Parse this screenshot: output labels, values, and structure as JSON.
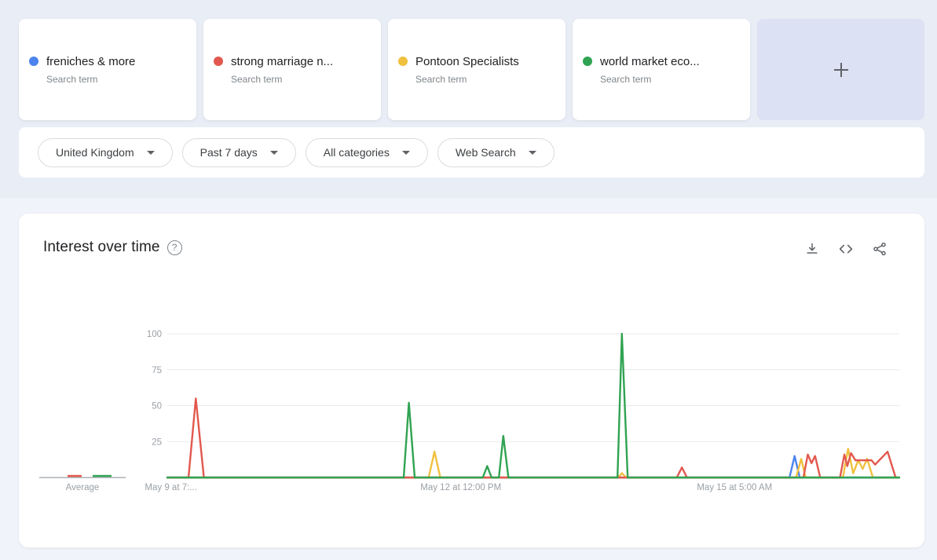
{
  "terms": [
    {
      "label": "freniches & more",
      "sublabel": "Search term",
      "color": "#4c83ee"
    },
    {
      "label": "strong marriage n...",
      "sublabel": "Search term",
      "color": "#e2584e"
    },
    {
      "label": "Pontoon Specialists",
      "sublabel": "Search term",
      "color": "#f0c03f"
    },
    {
      "label": "world market eco...",
      "sublabel": "Search term",
      "color": "#30a352"
    }
  ],
  "add_card": {
    "icon": "plus-icon"
  },
  "filters": [
    {
      "label": "United Kingdom"
    },
    {
      "label": "Past 7 days"
    },
    {
      "label": "All categories"
    },
    {
      "label": "Web Search"
    }
  ],
  "chart_panel": {
    "title": "Interest over time",
    "help_glyph": "?",
    "icons": [
      "download-icon",
      "embed-code-icon",
      "share-icon"
    ]
  },
  "chart_data": {
    "type": "line",
    "title": "Interest over time",
    "ylim": [
      0,
      100
    ],
    "yticks": [
      25,
      50,
      75,
      100
    ],
    "grid": true,
    "average_label": "Average",
    "averages": [
      {
        "term": "freniches & more",
        "value": 0
      },
      {
        "term": "strong marriage n...",
        "value": 1
      },
      {
        "term": "Pontoon Specialists",
        "value": 0
      },
      {
        "term": "world market eco...",
        "value": 1
      }
    ],
    "xtick_labels": [
      {
        "text": "May 9 at 7:...",
        "x_pct": 0.5
      },
      {
        "text": "May 12 at 12:00 PM",
        "x_pct": 40.1
      },
      {
        "text": "May 15 at 5:00 AM",
        "x_pct": 77.5
      }
    ],
    "series": [
      {
        "name": "freniches & more",
        "color": "#4c83ee",
        "points": [
          [
            0,
            0
          ],
          [
            85.0,
            0
          ],
          [
            85.7,
            15
          ],
          [
            86.4,
            0
          ],
          [
            100,
            0
          ]
        ]
      },
      {
        "name": "Pontoon Specialists",
        "color": "#f0c03f",
        "points": [
          [
            0,
            0
          ],
          [
            35.7,
            0
          ],
          [
            36.5,
            18
          ],
          [
            37.3,
            0
          ],
          [
            61.6,
            0
          ],
          [
            62.1,
            3
          ],
          [
            62.7,
            0
          ],
          [
            85.9,
            0
          ],
          [
            86.6,
            13
          ],
          [
            87.2,
            0
          ],
          [
            92.3,
            0
          ],
          [
            93.0,
            20
          ],
          [
            93.7,
            3
          ],
          [
            94.4,
            12
          ],
          [
            95.0,
            6
          ],
          [
            95.6,
            13
          ],
          [
            96.4,
            0
          ],
          [
            100,
            0
          ]
        ]
      },
      {
        "name": "strong marriage n...",
        "color": "#e2584e",
        "points": [
          [
            0,
            0
          ],
          [
            2.9,
            0
          ],
          [
            3.9,
            55
          ],
          [
            5.0,
            0
          ],
          [
            69.6,
            0
          ],
          [
            70.3,
            7
          ],
          [
            71.0,
            0
          ],
          [
            86.9,
            0
          ],
          [
            87.5,
            16
          ],
          [
            88.0,
            10
          ],
          [
            88.5,
            15
          ],
          [
            89.2,
            0
          ],
          [
            91.9,
            0
          ],
          [
            92.5,
            16
          ],
          [
            92.9,
            8
          ],
          [
            93.4,
            17
          ],
          [
            94.0,
            12
          ],
          [
            96.2,
            12
          ],
          [
            96.7,
            9
          ],
          [
            98.4,
            18
          ],
          [
            99.5,
            0
          ],
          [
            100,
            0
          ]
        ]
      },
      {
        "name": "world market eco...",
        "color": "#30a352",
        "points": [
          [
            0,
            0
          ],
          [
            32.3,
            0
          ],
          [
            33.0,
            52
          ],
          [
            33.8,
            0
          ],
          [
            43.1,
            0
          ],
          [
            43.7,
            8
          ],
          [
            44.3,
            0
          ],
          [
            45.3,
            0
          ],
          [
            45.9,
            29
          ],
          [
            46.6,
            0
          ],
          [
            61.5,
            0
          ],
          [
            62.1,
            100
          ],
          [
            62.9,
            0
          ],
          [
            100,
            0
          ]
        ]
      }
    ]
  }
}
